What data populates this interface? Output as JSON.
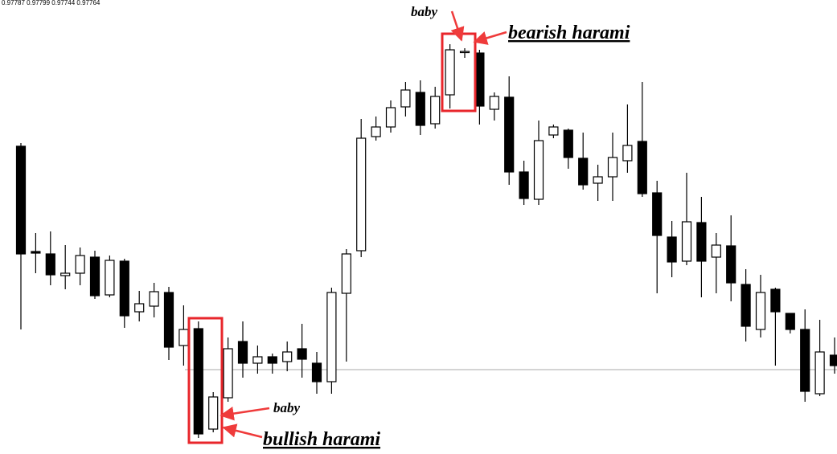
{
  "chart_data": {
    "type": "candlestick",
    "header": "0.97787 0.97799 0.97744 0.97764",
    "annotations": {
      "bearish_baby": "baby",
      "bearish": "bearish harami",
      "bullish_baby": "baby",
      "bullish": "bullish harami"
    },
    "ylim": [
      0,
      565
    ],
    "up_color": "#ffffff",
    "down_color": "#000000",
    "open": [
      383,
      252,
      249,
      222,
      225,
      245,
      198,
      240,
      177,
      184,
      201,
      135,
      156,
      31,
      70,
      140,
      113,
      121,
      115,
      131,
      113,
      90,
      200,
      253,
      395,
      407,
      432,
      450,
      411,
      447,
      500,
      499,
      429,
      444,
      351,
      317,
      397,
      403,
      368,
      337,
      345,
      365,
      389,
      325,
      270,
      240,
      288,
      245,
      259,
      211,
      155,
      205,
      175,
      155,
      75,
      123
    ],
    "high": [
      387,
      275,
      277,
      260,
      257,
      253,
      247,
      243,
      203,
      213,
      208,
      185,
      165,
      77,
      145,
      165,
      135,
      125,
      140,
      162,
      127,
      207,
      255,
      417,
      420,
      440,
      463,
      465,
      457,
      510,
      505,
      503,
      450,
      470,
      365,
      415,
      410,
      405,
      400,
      360,
      400,
      435,
      463,
      340,
      290,
      350,
      320,
      275,
      297,
      230,
      223,
      207,
      175,
      180,
      167,
      145
    ],
    "low": [
      155,
      225,
      210,
      205,
      210,
      193,
      195,
      157,
      165,
      170,
      117,
      110,
      20,
      27,
      65,
      95,
      100,
      100,
      103,
      95,
      75,
      75,
      115,
      245,
      390,
      400,
      420,
      397,
      405,
      430,
      493,
      410,
      415,
      335,
      310,
      310,
      393,
      355,
      329,
      315,
      315,
      350,
      320,
      200,
      220,
      235,
      195,
      200,
      190,
      140,
      145,
      110,
      150,
      65,
      72,
      100
    ],
    "close": [
      249,
      250,
      223,
      225,
      247,
      197,
      241,
      172,
      187,
      202,
      133,
      155,
      25,
      71,
      131,
      113,
      121,
      113,
      127,
      118,
      90,
      201,
      249,
      393,
      407,
      431,
      453,
      409,
      445,
      503,
      501,
      433,
      445,
      351,
      318,
      390,
      407,
      369,
      335,
      345,
      369,
      384,
      324,
      272,
      239,
      289,
      240,
      260,
      213,
      159,
      201,
      177,
      155,
      78,
      127,
      110
    ]
  }
}
